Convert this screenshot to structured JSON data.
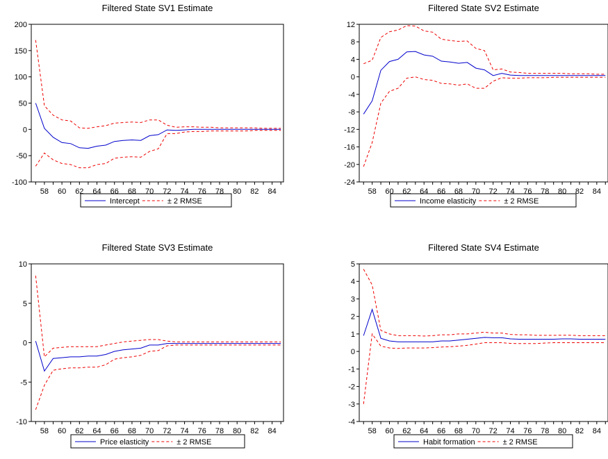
{
  "chart_data": [
    {
      "type": "line",
      "title": "Filtered State SV1 Estimate",
      "x": [
        57,
        58,
        59,
        60,
        61,
        62,
        63,
        64,
        65,
        66,
        67,
        68,
        69,
        70,
        71,
        72,
        73,
        74,
        75,
        76,
        77,
        78,
        79,
        80,
        81,
        82,
        83,
        84,
        85
      ],
      "x_tick_labels": [
        "58",
        "60",
        "62",
        "64",
        "66",
        "68",
        "70",
        "72",
        "74",
        "76",
        "78",
        "80",
        "82",
        "84"
      ],
      "y_tick_labels": [
        "-100",
        "-50",
        "0",
        "50",
        "100",
        "150",
        "200"
      ],
      "ylim": [
        -100,
        200
      ],
      "series": [
        {
          "name": "Intercept",
          "color": "#0000cc",
          "style": "solid",
          "values": [
            50,
            2,
            -15,
            -25,
            -27,
            -35,
            -36,
            -32,
            -30,
            -23,
            -21,
            -20,
            -21,
            -12,
            -10,
            -1,
            -2,
            -1,
            0,
            0,
            0,
            0,
            0,
            0,
            0,
            0,
            0,
            0,
            0
          ]
        },
        {
          "name": "± 2 RMSE",
          "color": "#ee0000",
          "style": "dashed",
          "values": [
            170,
            45,
            27,
            18,
            16,
            3,
            2,
            5,
            7,
            12,
            13,
            14,
            13,
            18,
            18,
            8,
            4,
            5,
            5,
            4,
            4,
            3,
            3,
            3,
            3,
            3,
            2,
            2,
            2
          ]
        },
        {
          "name": "",
          "color": "#ee0000",
          "style": "dashed",
          "values": [
            -70,
            -45,
            -58,
            -65,
            -67,
            -73,
            -73,
            -67,
            -65,
            -55,
            -53,
            -52,
            -53,
            -42,
            -37,
            -8,
            -8,
            -5,
            -4,
            -4,
            -3,
            -3,
            -3,
            -3,
            -3,
            -2,
            -2,
            -2,
            -2
          ]
        }
      ]
    },
    {
      "type": "line",
      "title": "Filtered State SV2 Estimate",
      "x": [
        57,
        58,
        59,
        60,
        61,
        62,
        63,
        64,
        65,
        66,
        67,
        68,
        69,
        70,
        71,
        72,
        73,
        74,
        75,
        76,
        77,
        78,
        79,
        80,
        81,
        82,
        83,
        84,
        85
      ],
      "x_tick_labels": [
        "58",
        "60",
        "62",
        "64",
        "66",
        "68",
        "70",
        "72",
        "74",
        "76",
        "78",
        "80",
        "82",
        "84"
      ],
      "y_tick_labels": [
        "-24",
        "-20",
        "-16",
        "-12",
        "-8",
        "-4",
        "0",
        "4",
        "8",
        "12"
      ],
      "ylim": [
        -24,
        12
      ],
      "series": [
        {
          "name": "Income elasticity",
          "color": "#0000cc",
          "style": "solid",
          "values": [
            -8.5,
            -5.5,
            1.5,
            3.5,
            4.0,
            5.7,
            5.8,
            5.0,
            4.7,
            3.6,
            3.4,
            3.1,
            3.3,
            2.0,
            1.6,
            0.3,
            0.8,
            0.4,
            0.3,
            0.3,
            0.3,
            0.3,
            0.3,
            0.3,
            0.3,
            0.3,
            0.3,
            0.3,
            0.3
          ]
        },
        {
          "name": "± 2 RMSE",
          "color": "#ee0000",
          "style": "dashed",
          "values": [
            3,
            3.8,
            9,
            10.3,
            10.7,
            11.7,
            11.6,
            10.5,
            10.2,
            8.6,
            8.3,
            8.1,
            8.2,
            6.5,
            6.0,
            1.6,
            1.8,
            1.1,
            1.0,
            0.8,
            0.8,
            0.8,
            0.8,
            0.8,
            0.7,
            0.7,
            0.7,
            0.6,
            0.6
          ]
        },
        {
          "name": "",
          "color": "#ee0000",
          "style": "dashed",
          "values": [
            -20.5,
            -15,
            -6,
            -3.3,
            -2.6,
            -0.3,
            0,
            -0.6,
            -0.8,
            -1.5,
            -1.6,
            -1.9,
            -1.6,
            -2.6,
            -2.6,
            -1.0,
            -0.2,
            -0.3,
            -0.3,
            -0.2,
            -0.2,
            -0.2,
            -0.1,
            -0.1,
            -0.1,
            -0.1,
            -0.1,
            -0.1,
            -0.1
          ]
        }
      ]
    },
    {
      "type": "line",
      "title": "Filtered State SV3 Estimate",
      "x": [
        57,
        58,
        59,
        60,
        61,
        62,
        63,
        64,
        65,
        66,
        67,
        68,
        69,
        70,
        71,
        72,
        73,
        74,
        75,
        76,
        77,
        78,
        79,
        80,
        81,
        82,
        83,
        84,
        85
      ],
      "x_tick_labels": [
        "58",
        "60",
        "62",
        "64",
        "66",
        "68",
        "70",
        "72",
        "74",
        "76",
        "78",
        "80",
        "82",
        "84"
      ],
      "y_tick_labels": [
        "-10",
        "-5",
        "0",
        "5",
        "10"
      ],
      "ylim": [
        -10,
        10
      ],
      "series": [
        {
          "name": "Price elasticity",
          "color": "#0000cc",
          "style": "solid",
          "values": [
            0.2,
            -3.6,
            -2.0,
            -1.9,
            -1.8,
            -1.8,
            -1.7,
            -1.7,
            -1.5,
            -1.1,
            -0.9,
            -0.8,
            -0.7,
            -0.3,
            -0.3,
            -0.1,
            -0.1,
            -0.1,
            -0.1,
            -0.1,
            -0.1,
            -0.1,
            -0.1,
            -0.1,
            -0.1,
            -0.1,
            -0.1,
            -0.1,
            -0.1
          ]
        },
        {
          "name": "± 2 RMSE",
          "color": "#ee0000",
          "style": "dashed",
          "values": [
            8.5,
            -1.8,
            -0.7,
            -0.6,
            -0.5,
            -0.5,
            -0.5,
            -0.5,
            -0.3,
            -0.1,
            0.1,
            0.2,
            0.3,
            0.4,
            0.4,
            0.2,
            0.1,
            0.1,
            0.1,
            0.1,
            0.1,
            0.1,
            0.1,
            0.1,
            0.1,
            0.1,
            0.1,
            0.1,
            0.1
          ]
        },
        {
          "name": "",
          "color": "#ee0000",
          "style": "dashed",
          "values": [
            -8.5,
            -5.4,
            -3.5,
            -3.3,
            -3.2,
            -3.2,
            -3.1,
            -3.1,
            -2.8,
            -2.1,
            -1.9,
            -1.8,
            -1.6,
            -1.1,
            -1.0,
            -0.4,
            -0.3,
            -0.3,
            -0.3,
            -0.3,
            -0.3,
            -0.3,
            -0.3,
            -0.3,
            -0.3,
            -0.3,
            -0.3,
            -0.3,
            -0.3
          ]
        }
      ]
    },
    {
      "type": "line",
      "title": "Filtered State SV4 Estimate",
      "x": [
        57,
        58,
        59,
        60,
        61,
        62,
        63,
        64,
        65,
        66,
        67,
        68,
        69,
        70,
        71,
        72,
        73,
        74,
        75,
        76,
        77,
        78,
        79,
        80,
        81,
        82,
        83,
        84,
        85
      ],
      "x_tick_labels": [
        "58",
        "60",
        "62",
        "64",
        "66",
        "68",
        "70",
        "72",
        "74",
        "76",
        "78",
        "80",
        "82",
        "84"
      ],
      "y_tick_labels": [
        "-4",
        "-3",
        "-2",
        "-1",
        "0",
        "1",
        "2",
        "3",
        "4",
        "5"
      ],
      "ylim": [
        -4,
        5
      ],
      "series": [
        {
          "name": "Habit formation",
          "color": "#0000cc",
          "style": "solid",
          "values": [
            0.9,
            2.4,
            0.75,
            0.6,
            0.55,
            0.55,
            0.55,
            0.55,
            0.55,
            0.6,
            0.6,
            0.65,
            0.7,
            0.75,
            0.8,
            0.78,
            0.78,
            0.72,
            0.7,
            0.7,
            0.7,
            0.7,
            0.7,
            0.72,
            0.72,
            0.7,
            0.7,
            0.7,
            0.7
          ]
        },
        {
          "name": "± 2 RMSE",
          "color": "#ee0000",
          "style": "dashed",
          "values": [
            4.7,
            3.8,
            1.2,
            1.0,
            0.9,
            0.9,
            0.9,
            0.88,
            0.9,
            0.95,
            0.95,
            1.0,
            1.0,
            1.05,
            1.1,
            1.05,
            1.05,
            0.97,
            0.95,
            0.95,
            0.92,
            0.92,
            0.92,
            0.93,
            0.93,
            0.9,
            0.9,
            0.9,
            0.9
          ]
        },
        {
          "name": "",
          "color": "#ee0000",
          "style": "dashed",
          "values": [
            -3.0,
            1.0,
            0.3,
            0.2,
            0.17,
            0.2,
            0.2,
            0.2,
            0.22,
            0.25,
            0.27,
            0.3,
            0.35,
            0.42,
            0.5,
            0.5,
            0.5,
            0.46,
            0.45,
            0.45,
            0.45,
            0.48,
            0.5,
            0.5,
            0.5,
            0.5,
            0.5,
            0.5,
            0.5
          ]
        }
      ]
    }
  ]
}
